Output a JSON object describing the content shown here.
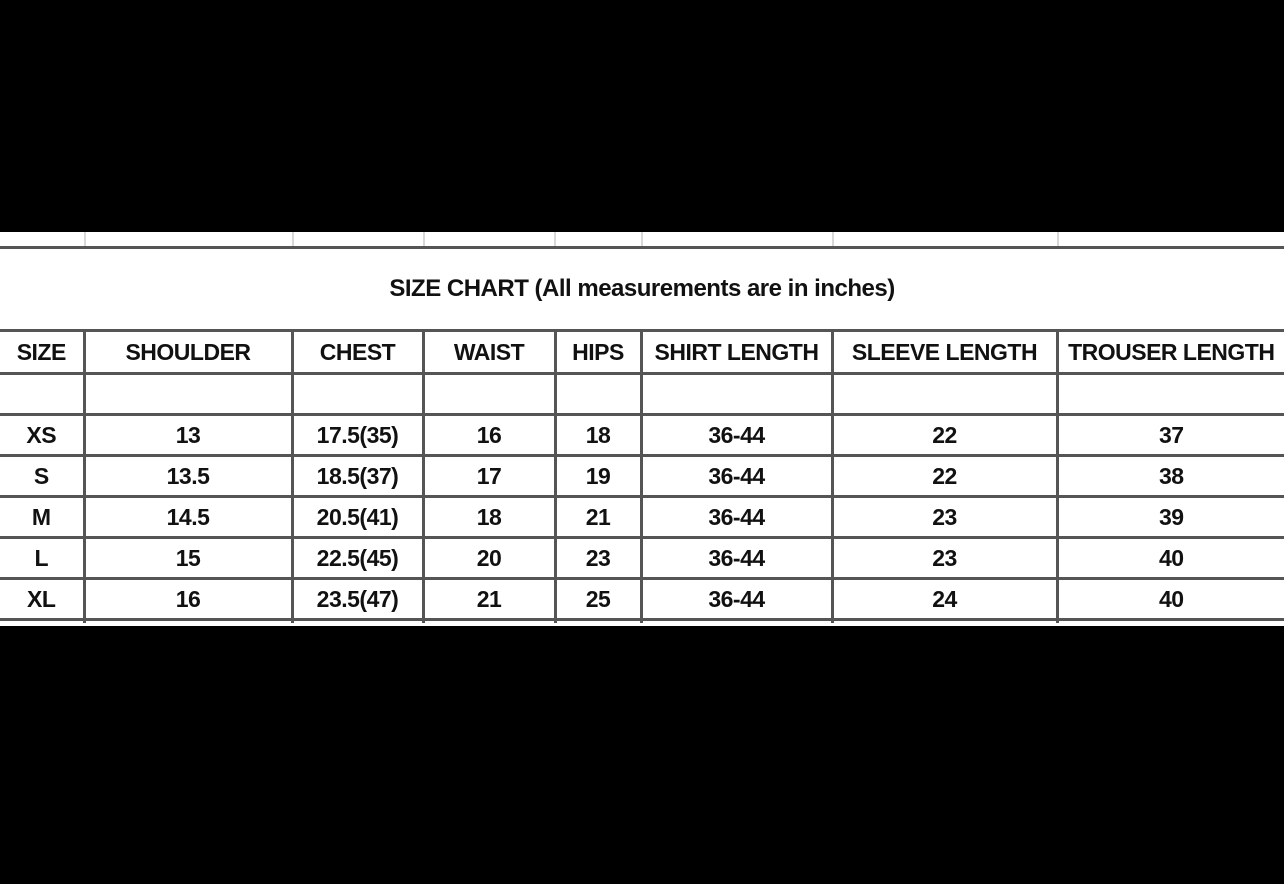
{
  "title": "SIZE CHART (All measurements are in inches)",
  "columns": [
    "SIZE",
    "SHOULDER",
    "CHEST",
    "WAIST",
    "HIPS",
    "SHIRT LENGTH",
    "SLEEVE LENGTH",
    "TROUSER LENGTH"
  ],
  "rows": [
    [
      "XS",
      "13",
      "17.5(35)",
      "16",
      "18",
      "36-44",
      "22",
      "37"
    ],
    [
      "S",
      "13.5",
      "18.5(37)",
      "17",
      "19",
      "36-44",
      "22",
      "38"
    ],
    [
      "M",
      "14.5",
      "20.5(41)",
      "18",
      "21",
      "36-44",
      "23",
      "39"
    ],
    [
      "L",
      "15",
      "22.5(45)",
      "20",
      "23",
      "36-44",
      "23",
      "40"
    ],
    [
      "XL",
      "16",
      "23.5(47)",
      "21",
      "25",
      "36-44",
      "24",
      "40"
    ]
  ],
  "colors": {
    "background": "#000000",
    "sheet": "#ffffff",
    "border": "#555555",
    "text": "#111111"
  }
}
